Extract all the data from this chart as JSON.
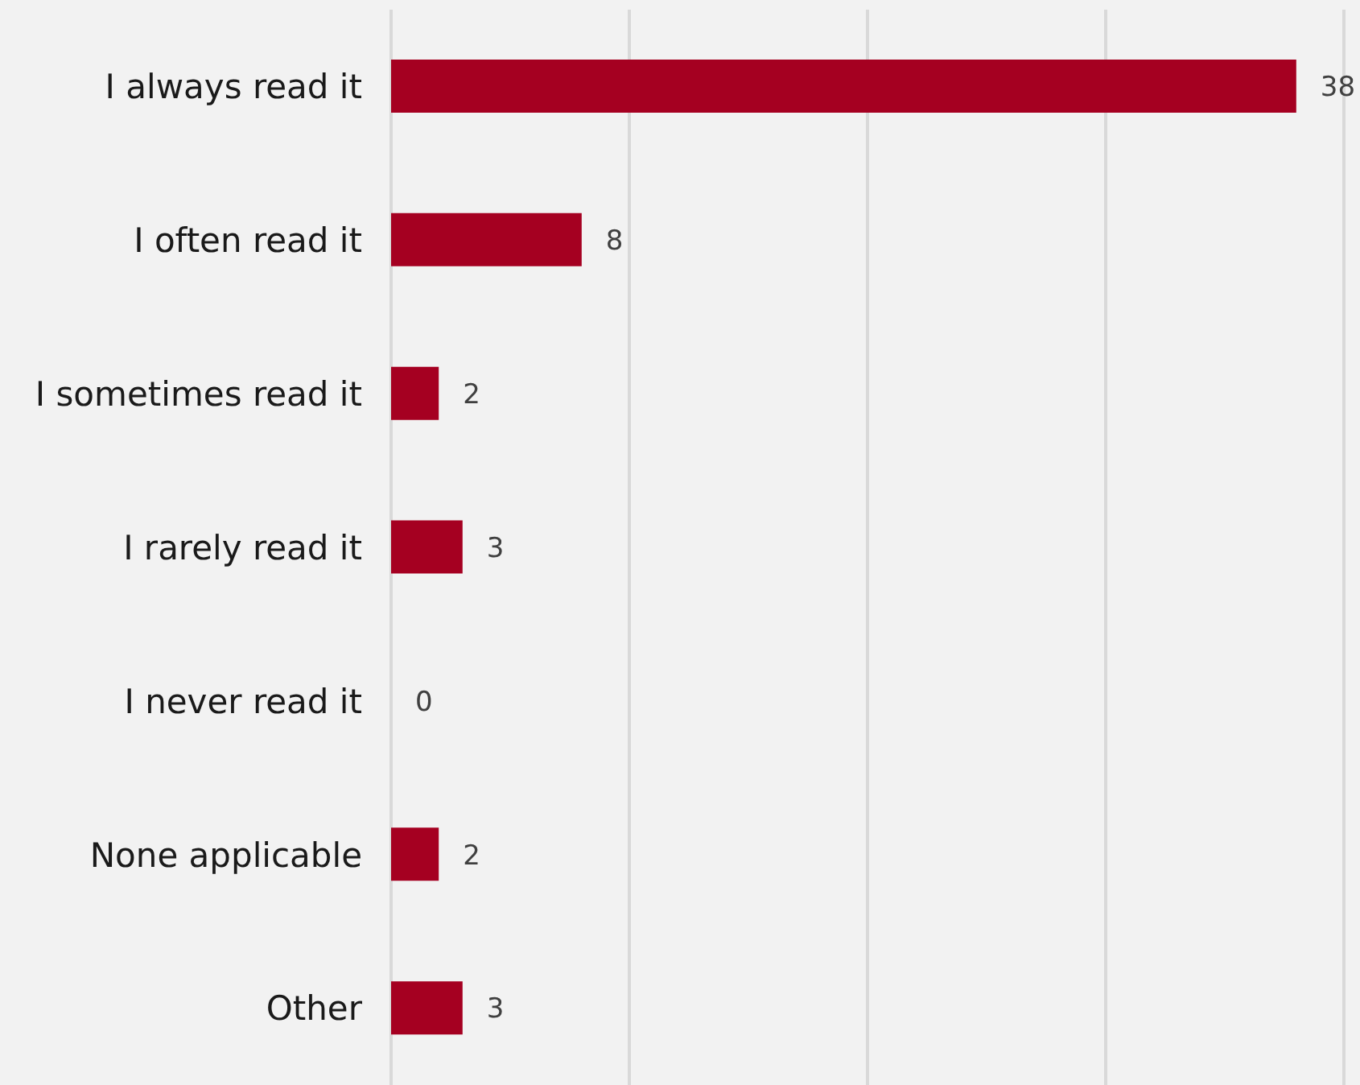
{
  "chart_data": {
    "type": "bar",
    "orientation": "horizontal",
    "categories": [
      "I always read it",
      "I often read it",
      "I sometimes read it",
      "I rarely read it",
      "I never read it",
      "None applicable",
      "Other"
    ],
    "values": [
      38,
      8,
      2,
      3,
      0,
      2,
      3
    ],
    "color": "#a50021",
    "xlim": [
      0,
      40
    ],
    "xticks": [
      {
        "value": 0,
        "label": null
      },
      {
        "value": 10,
        "label": null
      },
      {
        "value": 20,
        "label": null
      },
      {
        "value": 30,
        "label": null
      },
      {
        "value": 40,
        "label": null
      }
    ],
    "tick_labels": "y",
    "grid": "x",
    "data_labels": true
  }
}
